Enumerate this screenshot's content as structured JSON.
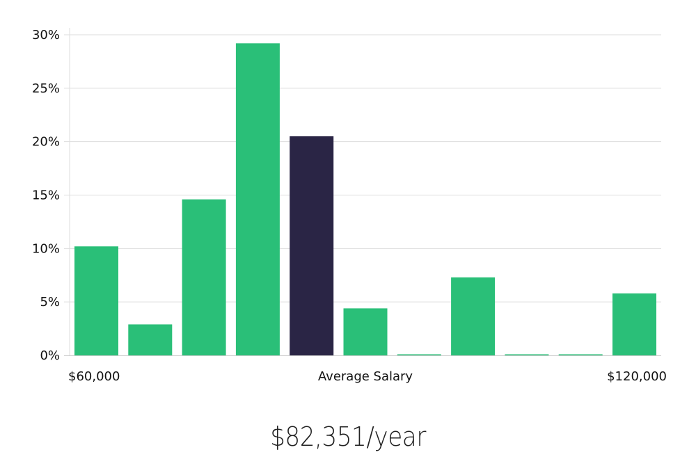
{
  "chart_data": {
    "type": "bar",
    "y_ticks": [
      "0%",
      "5%",
      "10%",
      "15%",
      "20%",
      "25%",
      "30%"
    ],
    "y_tick_values": [
      0,
      5,
      10,
      15,
      20,
      25,
      30
    ],
    "ylim": [
      0,
      30
    ],
    "values": [
      10.2,
      2.9,
      14.6,
      29.2,
      20.5,
      4.4,
      0.1,
      7.3,
      0.1,
      0.1,
      5.8
    ],
    "highlight_index": 4,
    "x_start_label": "$60,000",
    "x_center_label": "Average Salary",
    "x_end_label": "$120,000",
    "xlabel": "",
    "ylabel": "",
    "grid": true,
    "bar_color": "#2abf78",
    "highlight_color": "#2a2545",
    "grid_color": "#dddddd"
  },
  "headline": "$82,351/year"
}
